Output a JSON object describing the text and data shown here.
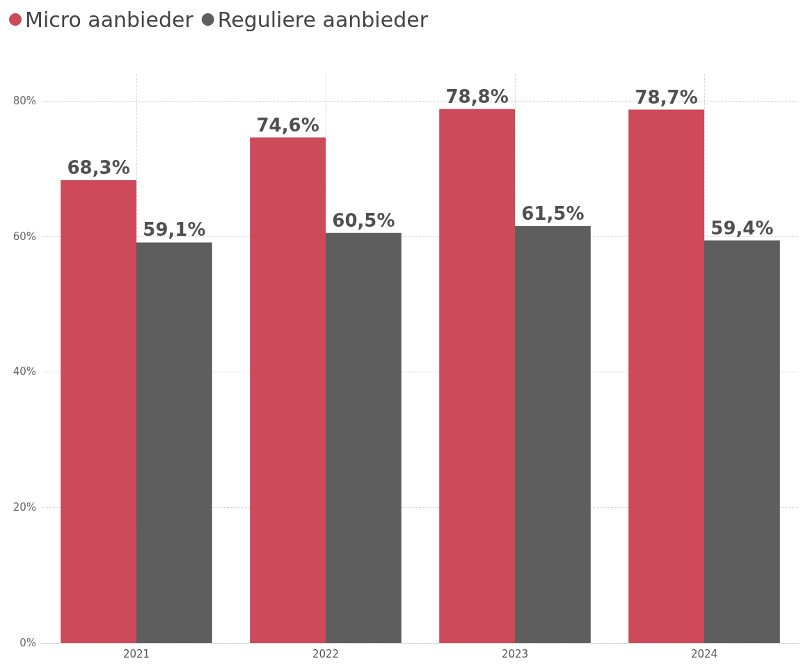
{
  "chart_data": {
    "type": "bar",
    "categories": [
      "2021",
      "2022",
      "2023",
      "2024"
    ],
    "series": [
      {
        "name": "Micro aanbieder",
        "color": "#cc4a5a",
        "values": [
          68.3,
          74.6,
          78.8,
          78.7
        ],
        "value_labels": [
          "68,3%",
          "74,6%",
          "78,8%",
          "78,7%"
        ]
      },
      {
        "name": "Reguliere aanbieder",
        "color": "#5e5e5e",
        "values": [
          59.1,
          60.5,
          61.5,
          59.4
        ],
        "value_labels": [
          "59,1%",
          "60,5%",
          "61,5%",
          "59,4%"
        ]
      }
    ],
    "ylim": [
      0,
      84
    ],
    "yticks": [
      {
        "value": 0,
        "label": "0%"
      },
      {
        "value": 20,
        "label": "20%"
      },
      {
        "value": 40,
        "label": "40%"
      },
      {
        "value": 60,
        "label": "60%"
      },
      {
        "value": 80,
        "label": "80%"
      }
    ],
    "grid": true,
    "legend": "top left"
  }
}
